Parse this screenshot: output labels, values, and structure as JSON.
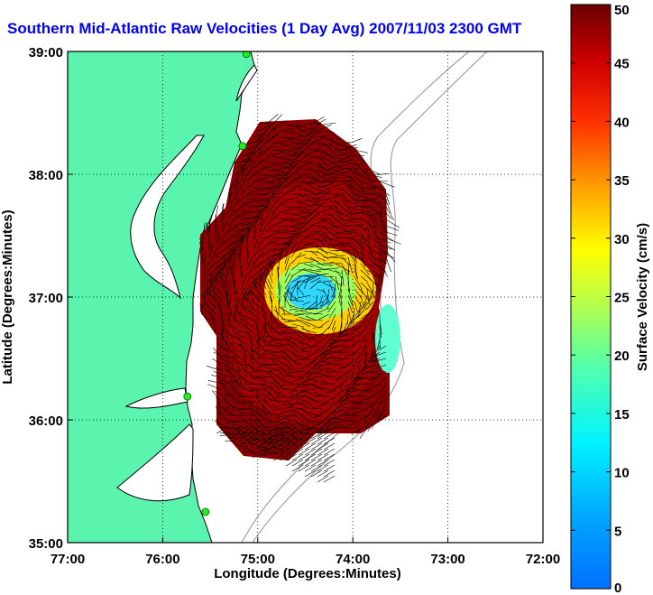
{
  "chart_data": {
    "type": "heatmap",
    "title": "Southern Mid-Atlantic Raw Velocities (1 Day Avg) 2007/11/03 2300 GMT",
    "xlabel": "Longitude (Degrees:Minutes)",
    "ylabel": "Latitude (Degrees:Minutes)",
    "x_ticks": [
      "77:00",
      "76:00",
      "75:00",
      "74:00",
      "73:00",
      "72:00"
    ],
    "y_ticks": [
      "39:00",
      "38:00",
      "37:00",
      "36:00",
      "35:00"
    ],
    "xlim": [
      -77,
      -72
    ],
    "ylim": [
      35,
      39
    ],
    "grid": true,
    "colorbar": {
      "label": "Surface Velocity (cm/s)",
      "range": [
        0,
        50
      ],
      "ticks": [
        "0",
        "5",
        "10",
        "15",
        "20",
        "25",
        "30",
        "35",
        "40",
        "45",
        "50"
      ]
    },
    "colors": {
      "land": "#5af4ae",
      "coastline": "#000000",
      "bathymetry": "#a0a0a0",
      "high_velocity": "#7a0000",
      "low_velocity": "#33ccff",
      "station": "#22ee22"
    },
    "stations": [
      {
        "lon": -75.12,
        "lat": 38.98
      },
      {
        "lon": -75.16,
        "lat": 38.23
      },
      {
        "lon": -75.74,
        "lat": 36.19
      },
      {
        "lon": -75.55,
        "lat": 35.25
      }
    ],
    "slow_eddy": {
      "center_lon": -74.44,
      "center_lat": 37.03,
      "min_speed": 8
    },
    "slow_east_zone": {
      "center_lon": -74.1,
      "center_lat": 36.8,
      "min_speed": 15
    }
  }
}
